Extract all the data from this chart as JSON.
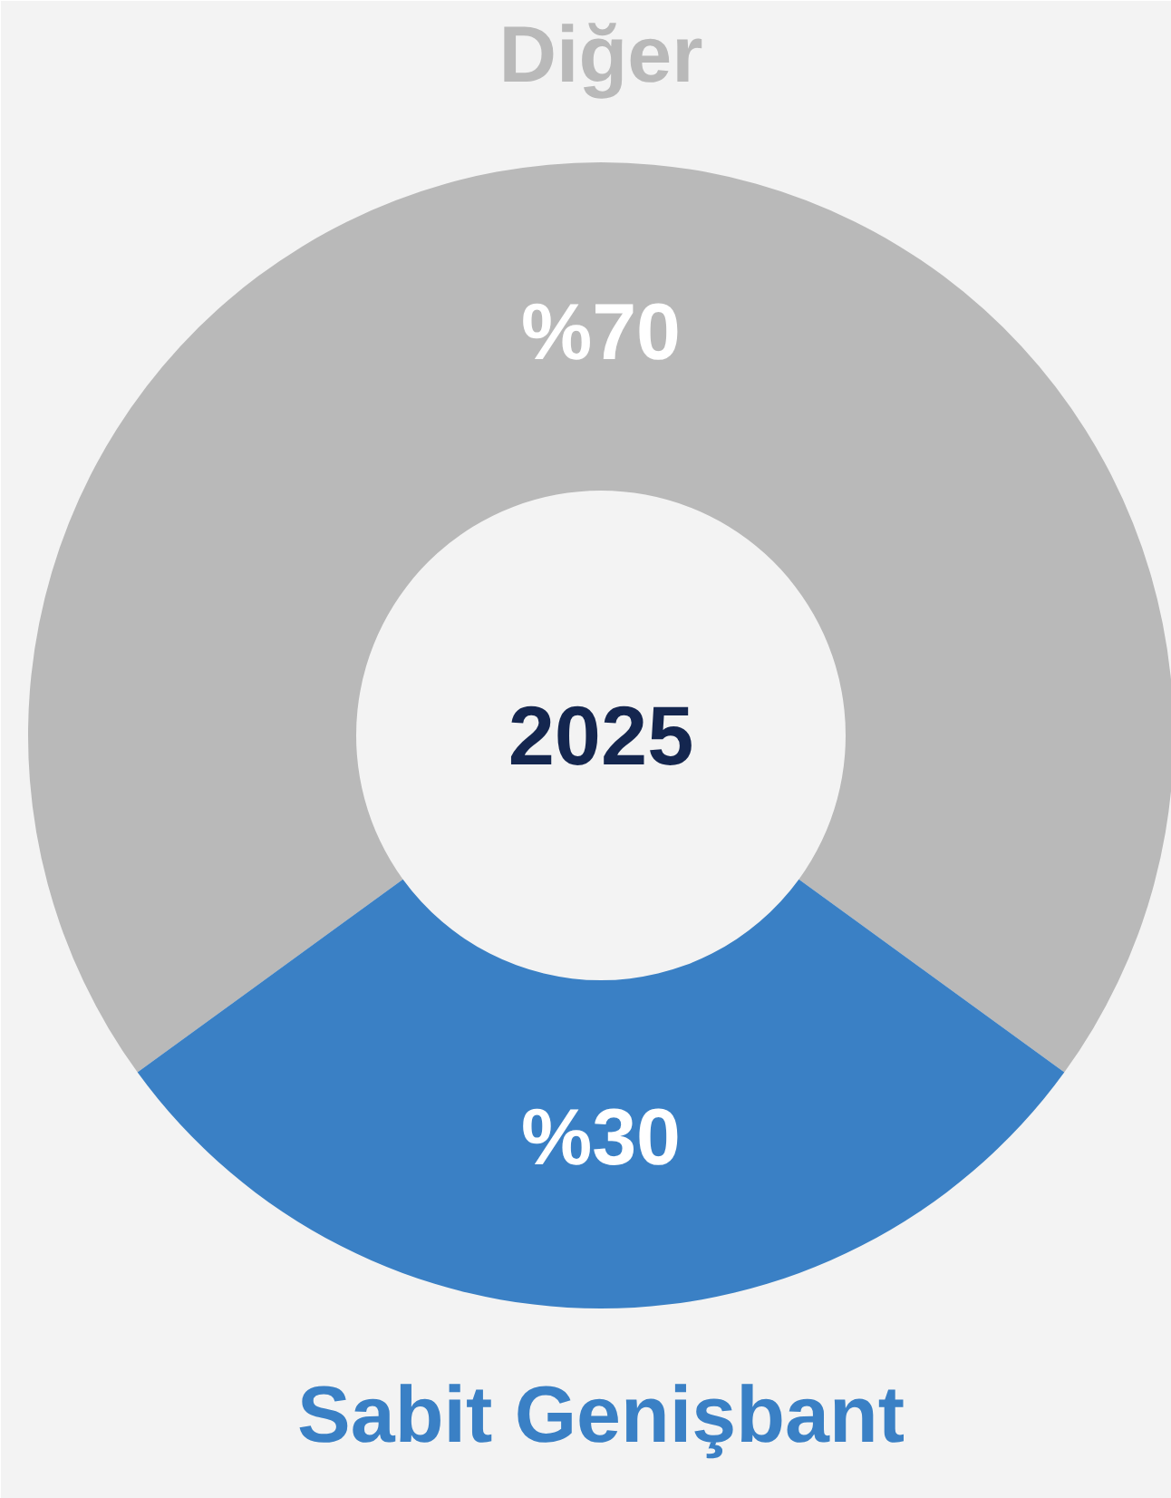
{
  "chart_data": {
    "type": "donut",
    "categories": [
      "Diğer",
      "Sabit Genişbant"
    ],
    "values": [
      70,
      30
    ],
    "colors": [
      "#b9b9b9",
      "#3a80c5"
    ],
    "value_labels": [
      "%70",
      "%30"
    ],
    "annotations": [
      "2025"
    ]
  }
}
